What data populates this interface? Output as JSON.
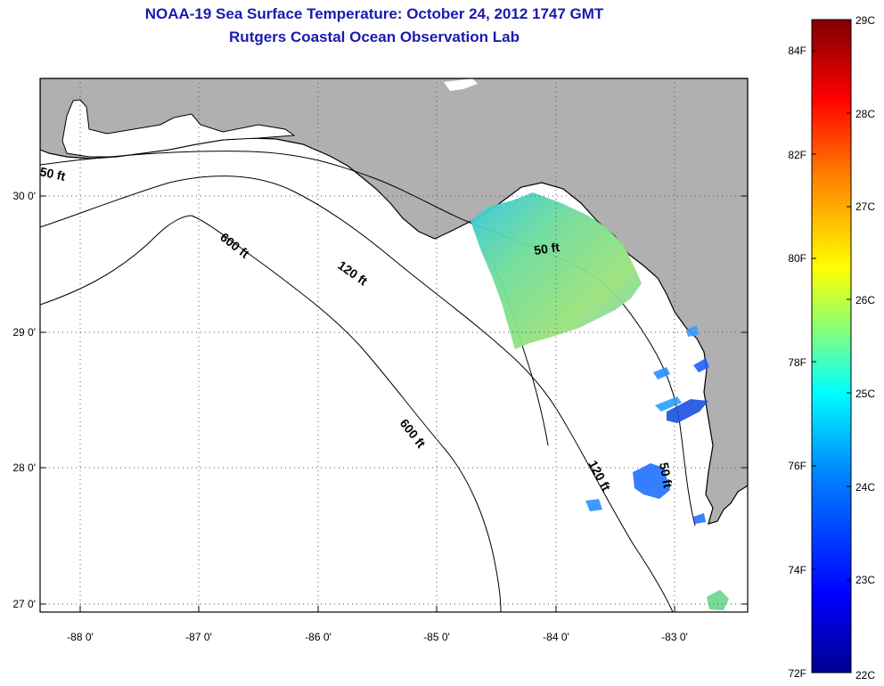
{
  "header": {
    "title": "NOAA-19 Sea Surface Temperature:  October 24, 2012 1747 GMT",
    "subtitle": "Rutgers Coastal Ocean Observation Lab"
  },
  "map": {
    "region": "Gulf of Mexico - Florida Big Bend",
    "lon_range": [
      -88.3,
      -82.45
    ],
    "lat_range": [
      26.95,
      30.88
    ],
    "lon_ticks": [
      {
        "value": -88,
        "label": "-88 0'"
      },
      {
        "value": -87,
        "label": "-87 0'"
      },
      {
        "value": -86,
        "label": "-86 0'"
      },
      {
        "value": -85,
        "label": "-85 0'"
      },
      {
        "value": -84,
        "label": "-84 0'"
      },
      {
        "value": -83,
        "label": "-83 0'"
      }
    ],
    "lat_ticks": [
      {
        "value": 30,
        "label": "30 0'"
      },
      {
        "value": 29,
        "label": "29 0'"
      },
      {
        "value": 28,
        "label": "28 0'"
      },
      {
        "value": 27,
        "label": "27 0'"
      }
    ],
    "gridlines": "dotted",
    "land_color": "#b0b0b0",
    "ocean_color": "#ffffff",
    "contour_labels": [
      {
        "text": "50 ft"
      },
      {
        "text": "600 ft"
      },
      {
        "text": "120 ft"
      },
      {
        "text": "50 ft"
      },
      {
        "text": "600 ft"
      },
      {
        "text": "120 ft"
      },
      {
        "text": "50 ft"
      }
    ]
  },
  "colorbar": {
    "range_c": [
      22,
      29
    ],
    "range_f": [
      72,
      84.2
    ],
    "c_labels": [
      "29C",
      "28C",
      "27C",
      "26C",
      "25C",
      "24C",
      "23C",
      "22C"
    ],
    "f_labels": [
      "84F",
      "82F",
      "80F",
      "78F",
      "76F",
      "74F",
      "72F"
    ],
    "colors": [
      "#00008f",
      "#0000ff",
      "#0080ff",
      "#00ffff",
      "#80ff80",
      "#ffff00",
      "#ff8000",
      "#ff0000",
      "#800000"
    ]
  }
}
